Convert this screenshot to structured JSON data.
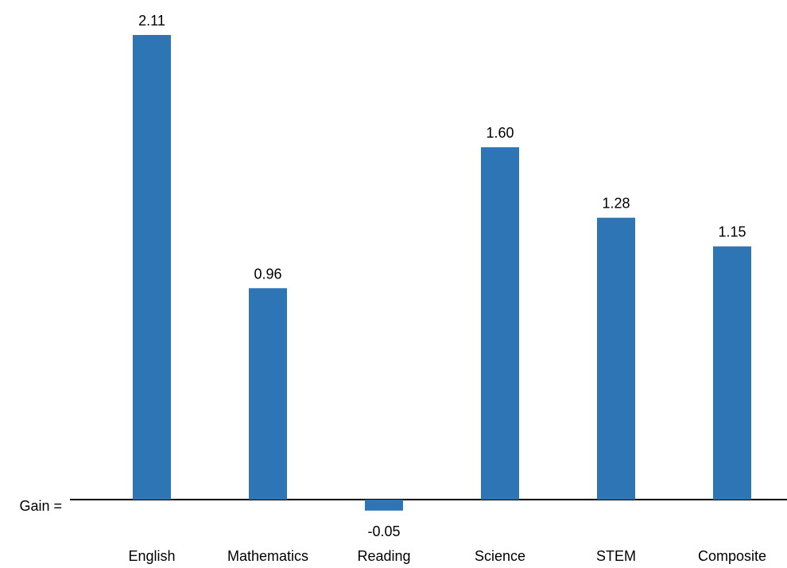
{
  "chart_data": {
    "type": "bar",
    "title": "",
    "xlabel": "",
    "ylabel": "",
    "baseline_label": "Gain =",
    "categories": [
      "English",
      "Mathematics",
      "Reading",
      "Science",
      "STEM",
      "Composite"
    ],
    "values": [
      2.11,
      0.96,
      -0.05,
      1.6,
      1.28,
      1.15
    ],
    "value_labels": [
      "2.11",
      "0.96",
      "-0.05",
      "1.60",
      "1.28",
      "1.15"
    ],
    "ylim": [
      -0.05,
      2.11
    ],
    "grid": false,
    "legend": "none",
    "bar_color": "#2E75B6",
    "axis_color": "#000000"
  }
}
